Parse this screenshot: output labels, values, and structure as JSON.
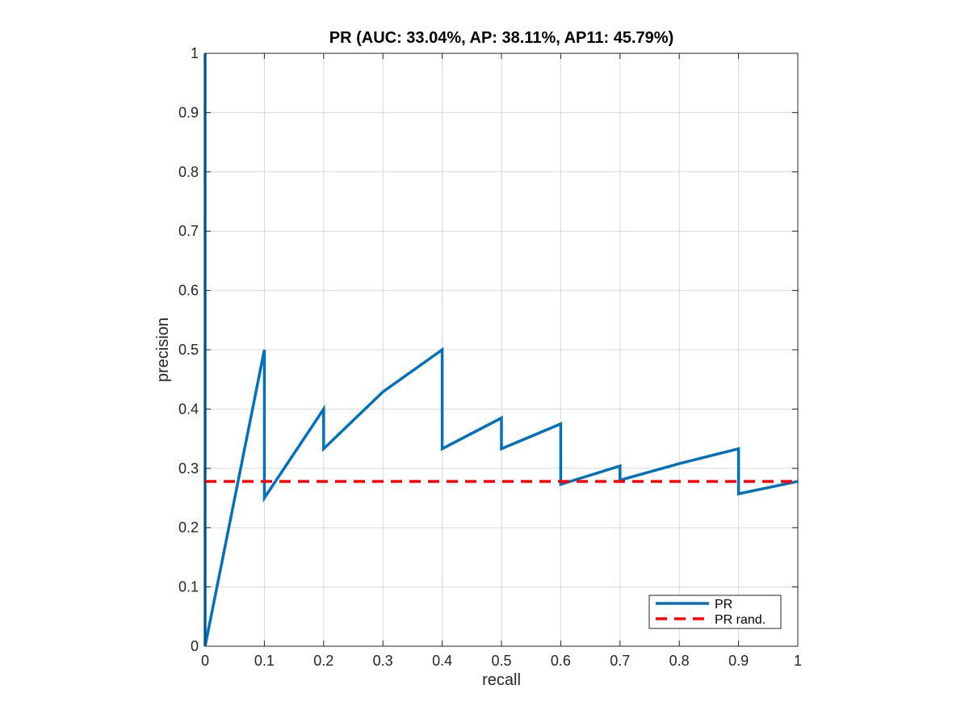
{
  "chart_data": {
    "type": "line",
    "title": "PR (AUC: 33.04%, AP: 38.11%, AP11: 45.79%)",
    "xlabel": "recall",
    "ylabel": "precision",
    "xlim": [
      0,
      1
    ],
    "ylim": [
      0,
      1
    ],
    "xticks": [
      0,
      0.1,
      0.2,
      0.3,
      0.4,
      0.5,
      0.6,
      0.7,
      0.8,
      0.9,
      1
    ],
    "xtick_labels": [
      "0",
      "0.1",
      "0.2",
      "0.3",
      "0.4",
      "0.5",
      "0.6",
      "0.7",
      "0.8",
      "0.9",
      "1"
    ],
    "yticks": [
      0,
      0.1,
      0.2,
      0.3,
      0.4,
      0.5,
      0.6,
      0.7,
      0.8,
      0.9,
      1
    ],
    "ytick_labels": [
      "0",
      "0.1",
      "0.2",
      "0.3",
      "0.4",
      "0.5",
      "0.6",
      "0.7",
      "0.8",
      "0.9",
      "1"
    ],
    "grid": true,
    "legend_position": "bottom-right",
    "series": [
      {
        "name": "PR",
        "color": "#0072bd",
        "style": "solid",
        "points": [
          [
            0,
            1
          ],
          [
            0,
            0
          ],
          [
            0.1,
            0.5
          ],
          [
            0.1,
            0.25
          ],
          [
            0.2,
            0.4
          ],
          [
            0.2,
            0.333
          ],
          [
            0.3,
            0.429
          ],
          [
            0.4,
            0.5
          ],
          [
            0.4,
            0.333
          ],
          [
            0.5,
            0.385
          ],
          [
            0.5,
            0.333
          ],
          [
            0.6,
            0.375
          ],
          [
            0.6,
            0.273
          ],
          [
            0.7,
            0.304
          ],
          [
            0.7,
            0.28
          ],
          [
            0.8,
            0.308
          ],
          [
            0.9,
            0.333
          ],
          [
            0.9,
            0.257
          ],
          [
            1.0,
            0.278
          ]
        ]
      },
      {
        "name": "PR rand.",
        "color": "#ff0000",
        "style": "dashed",
        "points": [
          [
            0,
            0.278
          ],
          [
            1.0,
            0.278
          ]
        ]
      }
    ]
  }
}
